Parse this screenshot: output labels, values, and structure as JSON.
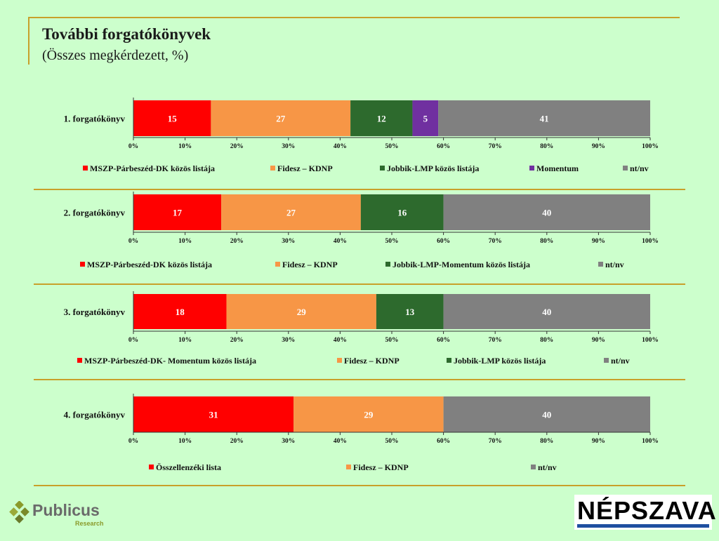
{
  "title": "További forgatókönyvek",
  "subtitle": "(Összes megkérdezett, %)",
  "logos": {
    "publicus": "Publicus",
    "publicus_sub": "Research",
    "nepszava": "NÉPSZAVA"
  },
  "colors": {
    "red": "#ff0000",
    "orange": "#f79646",
    "green": "#2d6a2d",
    "purple": "#7030a0",
    "gray": "#808080",
    "rule": "#c8a02a"
  },
  "chart_data": [
    {
      "type": "bar",
      "orientation": "horizontal",
      "stacked": true,
      "category": "1. forgatókönyv",
      "xlim": [
        0,
        100
      ],
      "ticks": [
        "0%",
        "10%",
        "20%",
        "30%",
        "40%",
        "50%",
        "60%",
        "70%",
        "80%",
        "90%",
        "100%"
      ],
      "series": [
        {
          "name": "MSZP-Párbeszéd-DK közös listája",
          "value": 15,
          "color": "#ff0000"
        },
        {
          "name": "Fidesz – KDNP",
          "value": 27,
          "color": "#f79646"
        },
        {
          "name": "Jobbik-LMP közös listája",
          "value": 12,
          "color": "#2d6a2d"
        },
        {
          "name": "Momentum",
          "value": 5,
          "color": "#7030a0"
        },
        {
          "name": "nt/nv",
          "value": 41,
          "color": "#808080"
        }
      ]
    },
    {
      "type": "bar",
      "orientation": "horizontal",
      "stacked": true,
      "category": "2. forgatókönyv",
      "xlim": [
        0,
        100
      ],
      "ticks": [
        "0%",
        "10%",
        "20%",
        "30%",
        "40%",
        "50%",
        "60%",
        "70%",
        "80%",
        "90%",
        "100%"
      ],
      "series": [
        {
          "name": "MSZP-Párbeszéd-DK közös listája",
          "value": 17,
          "color": "#ff0000"
        },
        {
          "name": "Fidesz – KDNP",
          "value": 27,
          "color": "#f79646"
        },
        {
          "name": "Jobbik-LMP-Momentum közös listája",
          "value": 16,
          "color": "#2d6a2d"
        },
        {
          "name": "nt/nv",
          "value": 40,
          "color": "#808080"
        }
      ]
    },
    {
      "type": "bar",
      "orientation": "horizontal",
      "stacked": true,
      "category": "3. forgatókönyv",
      "xlim": [
        0,
        100
      ],
      "ticks": [
        "0%",
        "10%",
        "20%",
        "30%",
        "40%",
        "50%",
        "60%",
        "70%",
        "80%",
        "90%",
        "100%"
      ],
      "series": [
        {
          "name": "MSZP-Párbeszéd-DK- Momentum közös listája",
          "value": 18,
          "color": "#ff0000"
        },
        {
          "name": "Fidesz – KDNP",
          "value": 29,
          "color": "#f79646"
        },
        {
          "name": "Jobbik-LMP közös listája",
          "value": 13,
          "color": "#2d6a2d"
        },
        {
          "name": "nt/nv",
          "value": 40,
          "color": "#808080"
        }
      ]
    },
    {
      "type": "bar",
      "orientation": "horizontal",
      "stacked": true,
      "category": "4. forgatókönyv",
      "xlim": [
        0,
        100
      ],
      "ticks": [
        "0%",
        "10%",
        "20%",
        "30%",
        "40%",
        "50%",
        "60%",
        "70%",
        "80%",
        "90%",
        "100%"
      ],
      "series": [
        {
          "name": "Összellenzéki lista",
          "value": 31,
          "color": "#ff0000"
        },
        {
          "name": "Fidesz – KDNP",
          "value": 29,
          "color": "#f79646"
        },
        {
          "name": "nt/nv",
          "value": 40,
          "color": "#808080"
        }
      ]
    }
  ]
}
